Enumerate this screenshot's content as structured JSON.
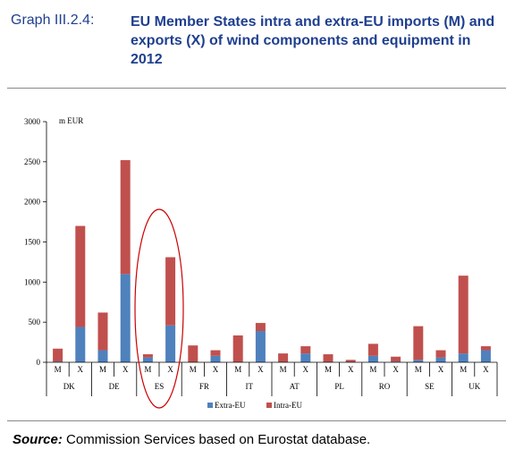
{
  "header": {
    "graph_label": "Graph III.2.4:",
    "title": "EU Member States intra and extra-EU imports (M) and exports (X) of wind components and equipment in 2012"
  },
  "source": {
    "label": "Source:",
    "text": "Commission Services based on Eurostat database."
  },
  "colors": {
    "extra_eu": "#4f81bd",
    "intra_eu": "#c0504d",
    "title": "#1f3f8f",
    "highlight": "#cc0000"
  },
  "chart_data": {
    "type": "bar",
    "stacked": true,
    "unit_label": "m EUR",
    "ylim": [
      0,
      3000
    ],
    "yticks": [
      0,
      500,
      1000,
      1500,
      2000,
      2500,
      3000
    ],
    "countries": [
      "DK",
      "DE",
      "ES",
      "FR",
      "IT",
      "AT",
      "PL",
      "RO",
      "SE",
      "UK"
    ],
    "flows": [
      "M",
      "X"
    ],
    "x_labels": [
      "M",
      "X",
      "M",
      "X",
      "M",
      "X",
      "M",
      "X",
      "M",
      "X",
      "M",
      "X",
      "M",
      "X",
      "M",
      "X",
      "M",
      "X",
      "M",
      "X"
    ],
    "legend": [
      "Extra-EU",
      "Intra-EU"
    ],
    "legend_position": "bottom",
    "highlighted_country": "ES",
    "series": [
      {
        "name": "Extra-EU",
        "values": [
          10,
          440,
          150,
          1100,
          60,
          460,
          5,
          80,
          5,
          390,
          5,
          110,
          5,
          5,
          80,
          10,
          30,
          60,
          110,
          150
        ]
      },
      {
        "name": "Intra-EU",
        "values": [
          160,
          1260,
          470,
          1420,
          40,
          850,
          205,
          70,
          330,
          100,
          105,
          90,
          95,
          25,
          150,
          60,
          420,
          90,
          970,
          50
        ]
      }
    ]
  }
}
